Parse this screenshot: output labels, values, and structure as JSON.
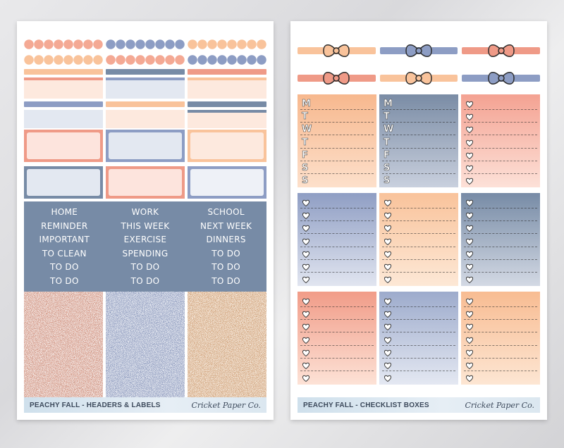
{
  "colors": {
    "peach": "#f9c39b",
    "coral": "#ef9a87",
    "blue": "#8d9dc4",
    "slate": "#778ba6",
    "pale_peach": "#fde9de",
    "pale_blue": "#e3e8f1",
    "pale_coral": "#fde4dd"
  },
  "left_sheet": {
    "labels": [
      [
        "HOME",
        "REMINDER",
        "IMPORTANT",
        "TO CLEAN",
        "TO DO",
        "TO DO"
      ],
      [
        "WORK",
        "THIS WEEK",
        "EXERCISE",
        "SPENDING",
        "TO DO",
        "TO DO"
      ],
      [
        "SCHOOL",
        "NEXT WEEK",
        "DINNERS",
        "TO DO",
        "TO DO",
        "TO DO"
      ]
    ],
    "footer": {
      "title": "PEACHY FALL - HEADERS & LABELS",
      "brand": "Cricket Paper Co."
    }
  },
  "right_sheet": {
    "weekdays": [
      "M",
      "T",
      "W",
      "T",
      "F",
      "S",
      "S"
    ],
    "footer": {
      "title": "PEACHY FALL - CHECKLIST BOXES",
      "brand": "Cricket Paper Co."
    }
  }
}
